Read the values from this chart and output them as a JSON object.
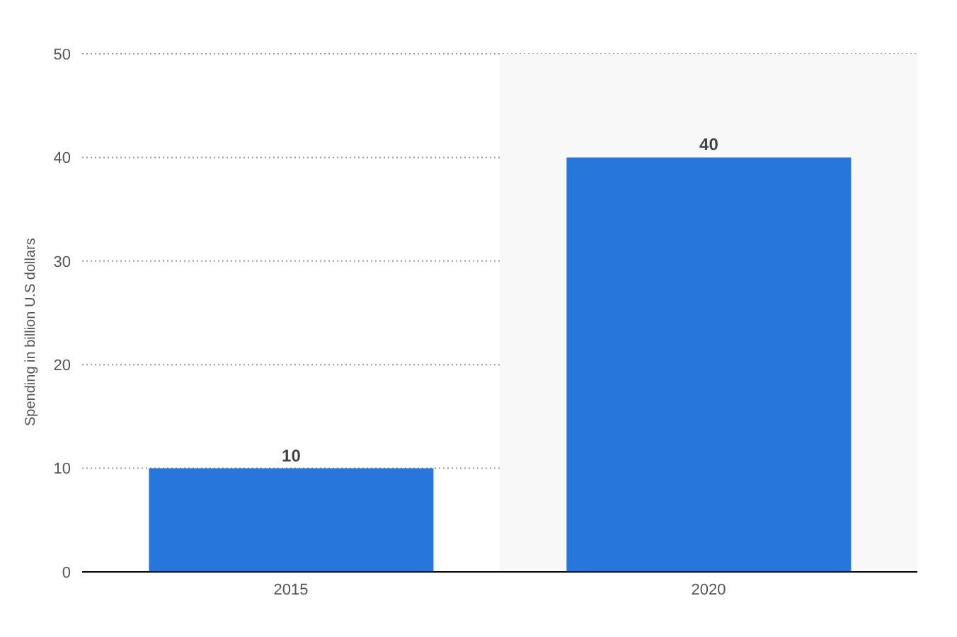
{
  "chart_data": {
    "type": "bar",
    "ylabel": "Spending in billion U.S dollars",
    "categories": [
      "2015",
      "2020"
    ],
    "values": [
      10,
      40
    ],
    "color": "#2776dc",
    "ylim": [
      0,
      50
    ],
    "yticks": [
      0,
      10,
      20,
      30,
      40,
      50
    ],
    "grid": "y",
    "data_labels": true,
    "legend": false,
    "bands": [
      {
        "axis": "x",
        "from": "2020",
        "to": "2020",
        "color": "#f8f8f8"
      }
    ]
  }
}
